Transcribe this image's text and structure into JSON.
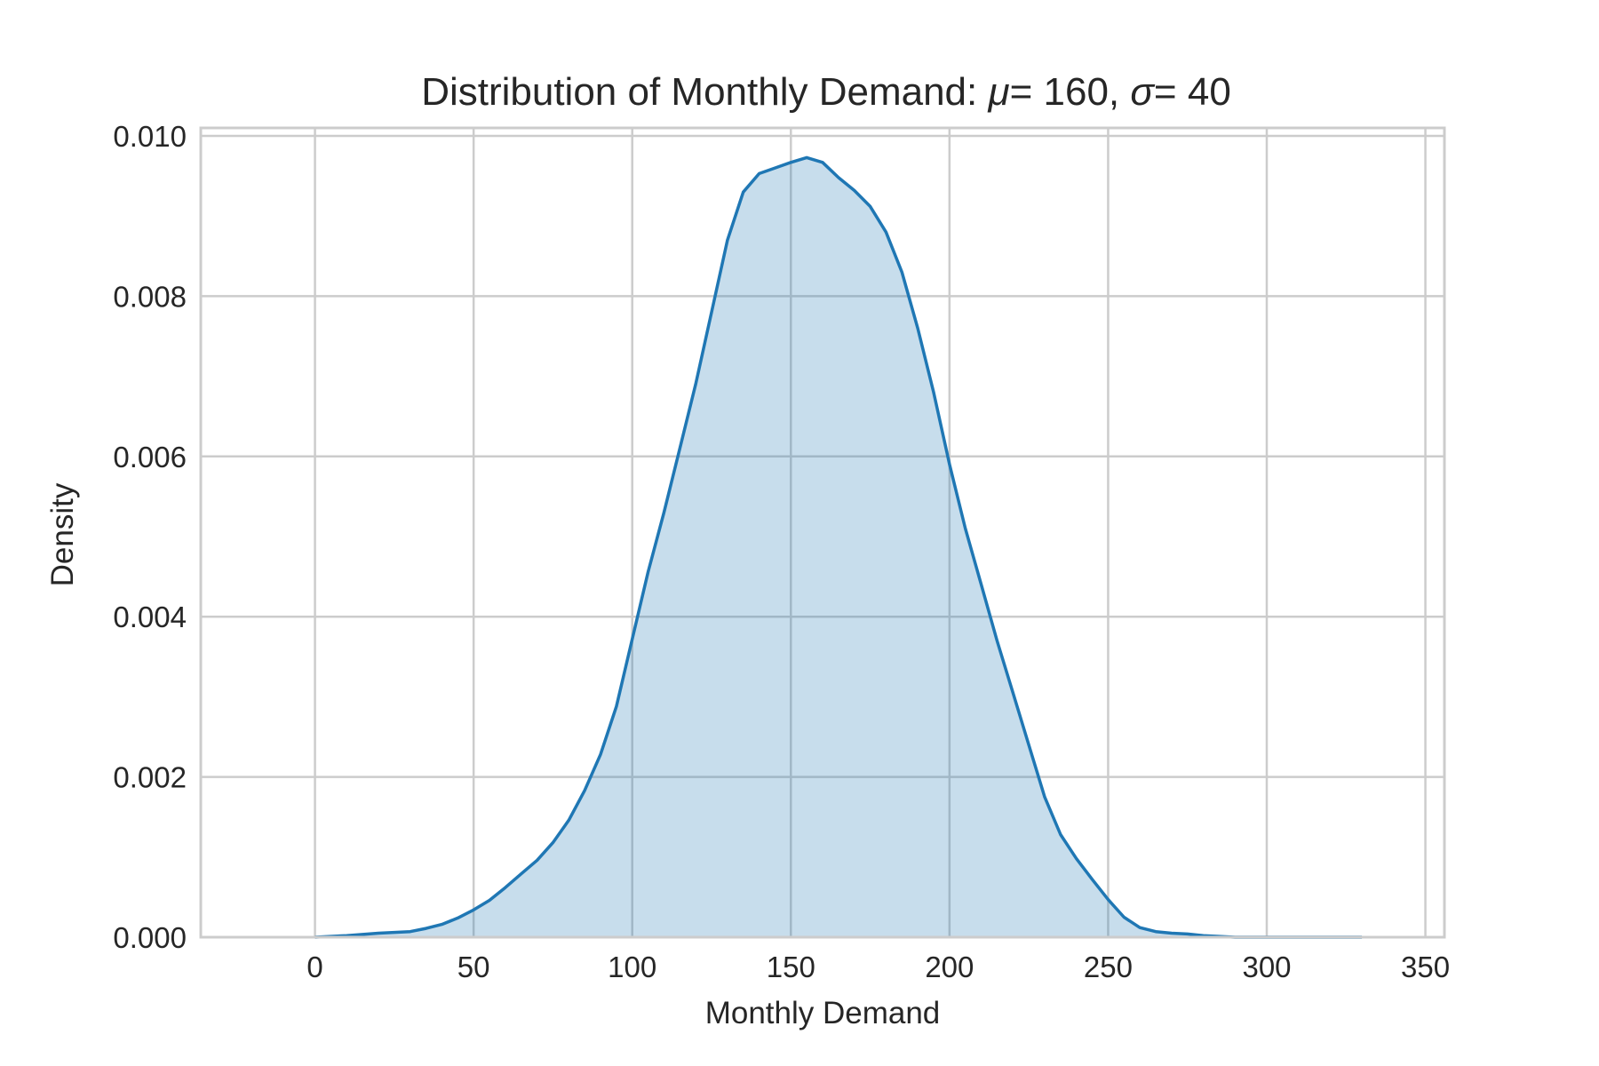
{
  "chart_data": {
    "type": "area",
    "title": "Distribution of Monthly Demand: μ = 160, σ = 40",
    "title_parts": {
      "prefix": "Distribution of Monthly Demand: ",
      "mu_symbol": "μ",
      "mu_value": "= 160",
      "separator": ", ",
      "sigma_symbol": "σ",
      "sigma_value": "= 40"
    },
    "xlabel": "Monthly Demand",
    "ylabel": "Density",
    "xlim": [
      -36,
      356
    ],
    "ylim": [
      0,
      0.0101
    ],
    "xticks": [
      0,
      50,
      100,
      150,
      200,
      250,
      300,
      350
    ],
    "xtick_labels": [
      "0",
      "50",
      "100",
      "150",
      "200",
      "250",
      "300",
      "350"
    ],
    "yticks": [
      0,
      0.002,
      0.004,
      0.006,
      0.008,
      0.01
    ],
    "ytick_labels": [
      "0.000",
      "0.002",
      "0.004",
      "0.006",
      "0.008",
      "0.010"
    ],
    "grid": true,
    "legend": "none",
    "colors": {
      "line": "#1f77b4",
      "fill": "#1f77b4",
      "fill_opacity": 0.25,
      "grid": "#cccccc"
    },
    "series": [
      {
        "x": [
          0,
          10,
          20,
          30,
          35,
          40,
          45,
          50,
          55,
          60,
          65,
          70,
          75,
          80,
          85,
          90,
          95,
          100,
          105,
          110,
          115,
          120,
          125,
          130,
          135,
          140,
          145,
          150,
          155,
          160,
          165,
          170,
          175,
          180,
          185,
          190,
          195,
          200,
          205,
          210,
          215,
          220,
          225,
          230,
          235,
          240,
          245,
          250,
          255,
          260,
          265,
          270,
          275,
          280,
          285,
          290,
          300,
          310,
          320,
          330
        ],
        "y": [
          0.0,
          2e-05,
          5e-05,
          7e-05,
          0.00011,
          0.00016,
          0.00024,
          0.00034,
          0.00046,
          0.00062,
          0.00079,
          0.00096,
          0.00118,
          0.00146,
          0.00183,
          0.00228,
          0.00288,
          0.00372,
          0.00456,
          0.0053,
          0.0061,
          0.0069,
          0.0078,
          0.0087,
          0.0093,
          0.00953,
          0.0096,
          0.00967,
          0.00973,
          0.00967,
          0.00948,
          0.00932,
          0.00912,
          0.0088,
          0.0083,
          0.0076,
          0.0068,
          0.0059,
          0.0051,
          0.0044,
          0.0037,
          0.00305,
          0.0024,
          0.00175,
          0.00128,
          0.00098,
          0.00072,
          0.00047,
          0.00025,
          0.00012,
          7e-05,
          5e-05,
          4e-05,
          2e-05,
          1e-05,
          0.0,
          0.0,
          0.0,
          0.0,
          0.0
        ]
      }
    ]
  }
}
